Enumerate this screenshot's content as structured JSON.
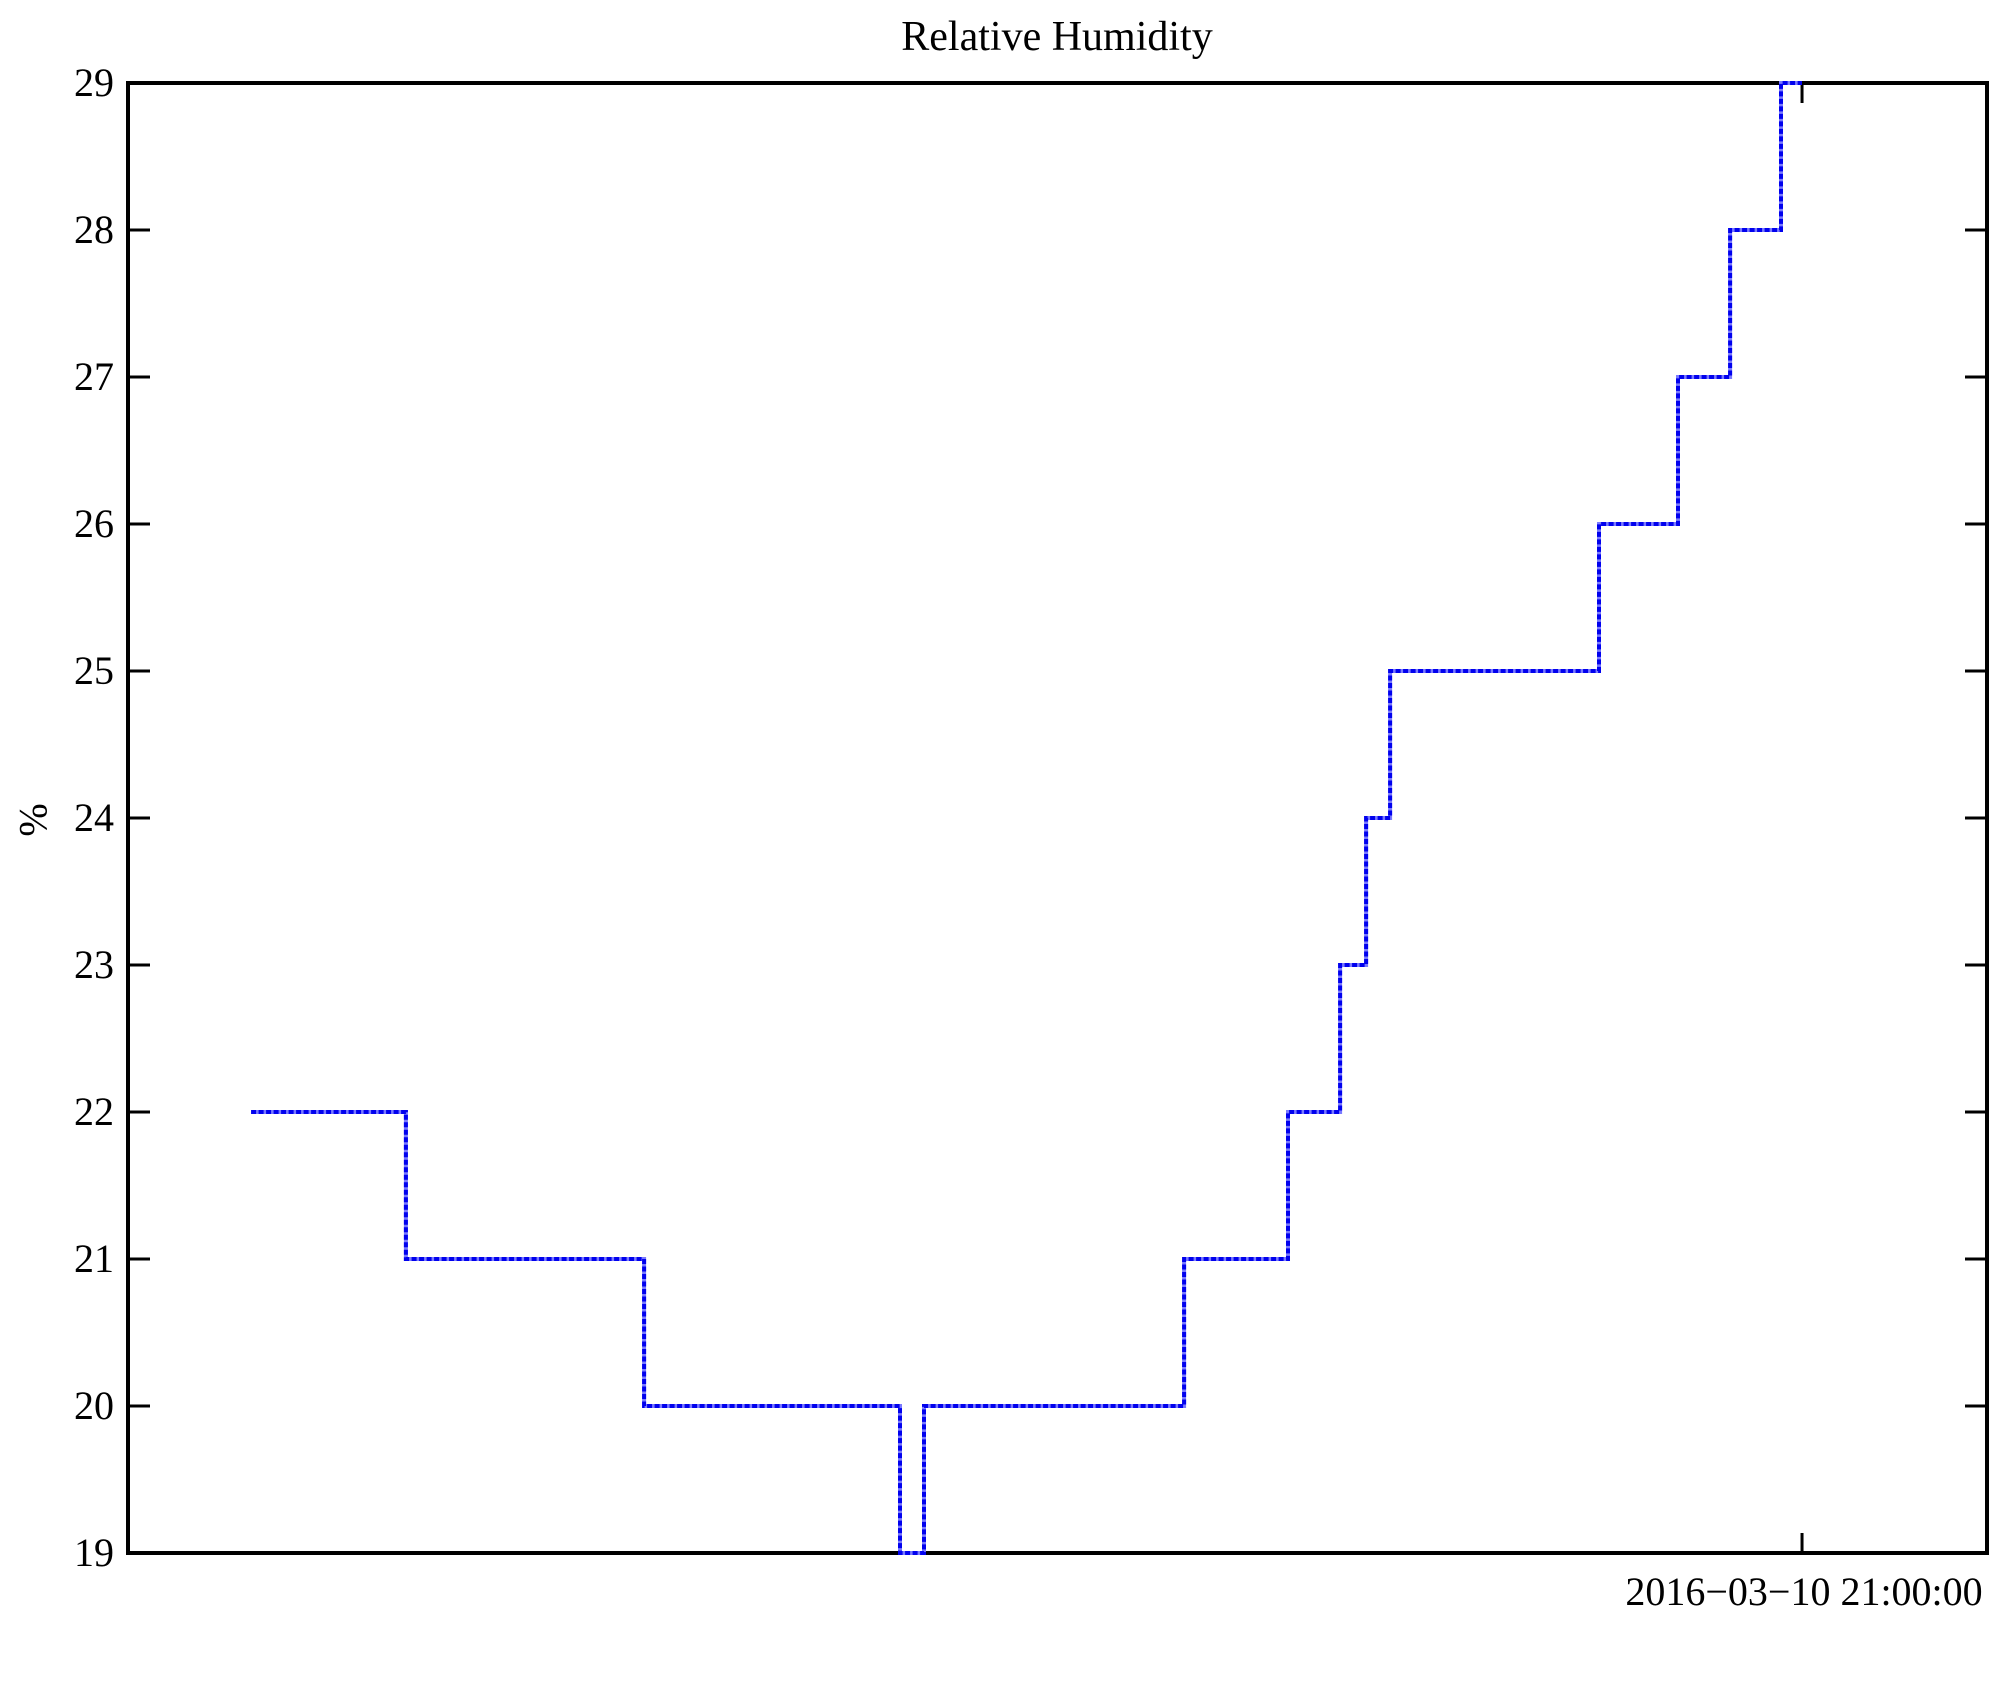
{
  "page": {
    "background_color": "#ffffff",
    "text_color": "#000000"
  },
  "chart_data": {
    "type": "line",
    "style": "steps",
    "title": "Relative Humidity",
    "xlabel": "",
    "ylabel": "%",
    "ylim": [
      19,
      29
    ],
    "yticks": [
      19,
      20,
      21,
      22,
      23,
      24,
      25,
      26,
      27,
      28,
      29
    ],
    "grid": false,
    "legend_position": "none",
    "frame_color": "#000000",
    "line_color": "#0101ee",
    "line_halo_color": "#7a7aff",
    "x_axis": {
      "tick_label": "2016−03−10 21:00:00",
      "tick_frac": 0.9005,
      "range_frac": [
        0,
        1
      ]
    },
    "series": [
      {
        "name": "Relative Humidity",
        "unit": "%",
        "note": "step curve vertices; x is fraction of x-axis span, y in percent",
        "points": [
          [
            0.0662,
            22
          ],
          [
            0.1495,
            22
          ],
          [
            0.1495,
            21
          ],
          [
            0.2776,
            21
          ],
          [
            0.2776,
            20
          ],
          [
            0.4153,
            20
          ],
          [
            0.4153,
            19
          ],
          [
            0.4282,
            19
          ],
          [
            0.4282,
            20
          ],
          [
            0.5681,
            20
          ],
          [
            0.5681,
            21
          ],
          [
            0.624,
            21
          ],
          [
            0.624,
            22
          ],
          [
            0.652,
            22
          ],
          [
            0.652,
            23
          ],
          [
            0.666,
            23
          ],
          [
            0.666,
            24
          ],
          [
            0.6789,
            24
          ],
          [
            0.6789,
            25
          ],
          [
            0.7913,
            25
          ],
          [
            0.7913,
            26
          ],
          [
            0.8338,
            26
          ],
          [
            0.8338,
            27
          ],
          [
            0.8618,
            27
          ],
          [
            0.8618,
            28
          ],
          [
            0.8892,
            28
          ],
          [
            0.8892,
            29
          ],
          [
            0.9005,
            29
          ]
        ]
      }
    ]
  }
}
